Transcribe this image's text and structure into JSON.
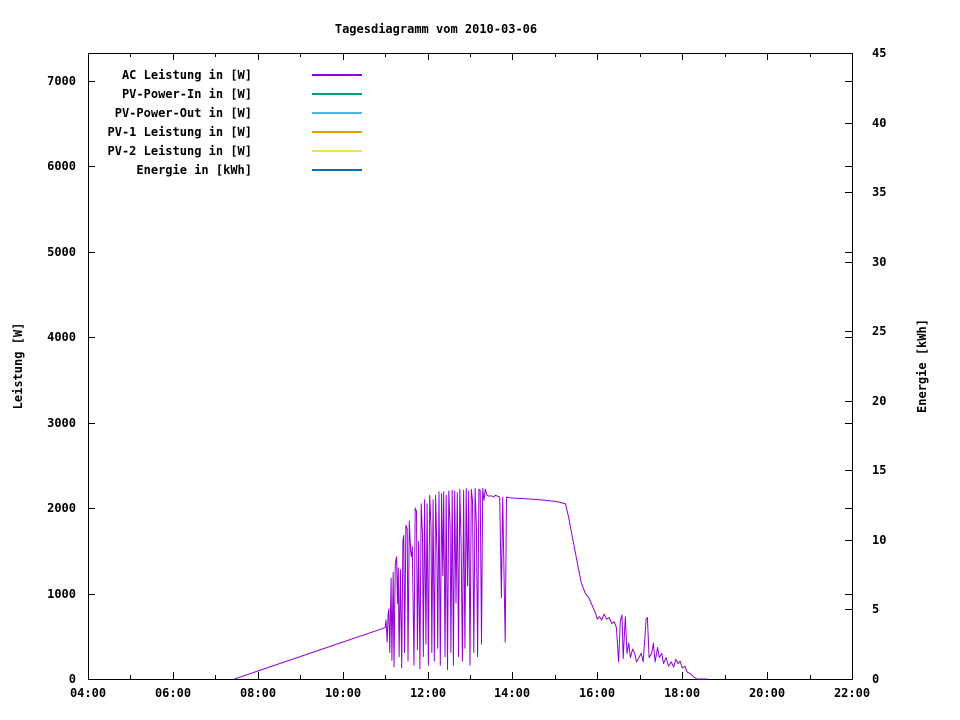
{
  "title": "Tagesdiagramm vom 2010-03-06",
  "axes": {
    "x": {
      "start": 4,
      "end": 22,
      "minor_every": 1,
      "ticks": [
        {
          "t": 4,
          "label": "04:00"
        },
        {
          "t": 6,
          "label": "06:00"
        },
        {
          "t": 8,
          "label": "08:00"
        },
        {
          "t": 10,
          "label": "10:00"
        },
        {
          "t": 12,
          "label": "12:00"
        },
        {
          "t": 14,
          "label": "14:00"
        },
        {
          "t": 16,
          "label": "16:00"
        },
        {
          "t": 18,
          "label": "18:00"
        },
        {
          "t": 20,
          "label": "20:00"
        },
        {
          "t": 22,
          "label": "22:00"
        }
      ]
    },
    "y_left": {
      "label": "Leistung [W]",
      "axis_max": 7327,
      "ticks": [
        {
          "v": 0,
          "label": "0"
        },
        {
          "v": 1000,
          "label": "1000"
        },
        {
          "v": 2000,
          "label": "2000"
        },
        {
          "v": 3000,
          "label": "3000"
        },
        {
          "v": 4000,
          "label": "4000"
        },
        {
          "v": 5000,
          "label": "5000"
        },
        {
          "v": 6000,
          "label": "6000"
        },
        {
          "v": 7000,
          "label": "7000"
        }
      ]
    },
    "y_right": {
      "label": "Energie [kWh]",
      "axis_max": 45,
      "ticks": [
        {
          "v": 0,
          "label": "0"
        },
        {
          "v": 5,
          "label": "5"
        },
        {
          "v": 10,
          "label": "10"
        },
        {
          "v": 15,
          "label": "15"
        },
        {
          "v": 20,
          "label": "20"
        },
        {
          "v": 25,
          "label": "25"
        },
        {
          "v": 30,
          "label": "30"
        },
        {
          "v": 35,
          "label": "35"
        },
        {
          "v": 40,
          "label": "40"
        },
        {
          "v": 45,
          "label": "45"
        }
      ]
    }
  },
  "chart_data": {
    "type": "line",
    "title": "Tagesdiagramm vom 2010-03-06",
    "xlabel": "",
    "ylabel_left": "Leistung [W]",
    "ylabel_right": "Energie [kWh]",
    "x_unit": "hour_of_day",
    "x_range": [
      4,
      22
    ],
    "y_left_range": [
      0,
      7327
    ],
    "y_right_range": [
      0,
      45
    ],
    "grid": false,
    "legend_position": "top-left-inside",
    "series": [
      {
        "id": "ac-leistung",
        "name": "AC Leistung in [W]",
        "color": "#9400d3",
        "axis": "left",
        "points": [
          [
            7.45,
            0
          ],
          [
            11.0,
            600
          ],
          [
            11.02,
            690
          ],
          [
            11.05,
            430
          ],
          [
            11.07,
            760
          ],
          [
            11.09,
            820
          ],
          [
            11.11,
            310
          ],
          [
            11.14,
            1180
          ],
          [
            11.16,
            220
          ],
          [
            11.19,
            1250
          ],
          [
            11.21,
            140
          ],
          [
            11.24,
            1350
          ],
          [
            11.27,
            1430
          ],
          [
            11.29,
            880
          ],
          [
            11.31,
            1300
          ],
          [
            11.33,
            260
          ],
          [
            11.36,
            1280
          ],
          [
            11.39,
            130
          ],
          [
            11.42,
            1620
          ],
          [
            11.44,
            1680
          ],
          [
            11.46,
            310
          ],
          [
            11.49,
            1800
          ],
          [
            11.52,
            1760
          ],
          [
            11.54,
            210
          ],
          [
            11.57,
            1850
          ],
          [
            11.6,
            1500
          ],
          [
            11.62,
            1430
          ],
          [
            11.64,
            1550
          ],
          [
            11.68,
            160
          ],
          [
            11.71,
            2000
          ],
          [
            11.74,
            1960
          ],
          [
            11.76,
            340
          ],
          [
            11.79,
            1610
          ],
          [
            11.82,
            120
          ],
          [
            11.85,
            2050
          ],
          [
            11.88,
            1690
          ],
          [
            11.9,
            260
          ],
          [
            11.93,
            2100
          ],
          [
            11.96,
            410
          ],
          [
            11.99,
            2050
          ],
          [
            12.02,
            160
          ],
          [
            12.05,
            2150
          ],
          [
            12.08,
            1790
          ],
          [
            12.1,
            310
          ],
          [
            12.13,
            2100
          ],
          [
            12.16,
            210
          ],
          [
            12.19,
            2150
          ],
          [
            12.22,
            1490
          ],
          [
            12.24,
            360
          ],
          [
            12.27,
            2190
          ],
          [
            12.3,
            160
          ],
          [
            12.33,
            2170
          ],
          [
            12.36,
            1210
          ],
          [
            12.38,
            2190
          ],
          [
            12.41,
            260
          ],
          [
            12.44,
            2150
          ],
          [
            12.47,
            110
          ],
          [
            12.5,
            2200
          ],
          [
            12.53,
            1790
          ],
          [
            12.55,
            310
          ],
          [
            12.58,
            2210
          ],
          [
            12.61,
            160
          ],
          [
            12.64,
            2200
          ],
          [
            12.67,
            890
          ],
          [
            12.7,
            2180
          ],
          [
            12.73,
            260
          ],
          [
            12.76,
            2220
          ],
          [
            12.79,
            1590
          ],
          [
            12.82,
            210
          ],
          [
            12.85,
            2210
          ],
          [
            12.88,
            360
          ],
          [
            12.91,
            2230
          ],
          [
            12.94,
            1090
          ],
          [
            12.97,
            2200
          ],
          [
            13.0,
            160
          ],
          [
            13.03,
            2220
          ],
          [
            13.06,
            2090
          ],
          [
            13.09,
            310
          ],
          [
            13.12,
            2230
          ],
          [
            13.15,
            1790
          ],
          [
            13.18,
            260
          ],
          [
            13.21,
            2220
          ],
          [
            13.24,
            2210
          ],
          [
            13.27,
            410
          ],
          [
            13.3,
            2230
          ],
          [
            13.33,
            2090
          ],
          [
            13.36,
            2220
          ],
          [
            13.4,
            2150
          ],
          [
            13.45,
            2140
          ],
          [
            13.5,
            2145
          ],
          [
            13.55,
            2130
          ],
          [
            13.6,
            2150
          ],
          [
            13.65,
            2140
          ],
          [
            13.7,
            2130
          ],
          [
            13.74,
            950
          ],
          [
            13.77,
            2125
          ],
          [
            13.83,
            430
          ],
          [
            13.86,
            2130
          ],
          [
            13.95,
            2120
          ],
          [
            14.1,
            2115
          ],
          [
            14.3,
            2110
          ],
          [
            14.5,
            2105
          ],
          [
            14.7,
            2095
          ],
          [
            14.9,
            2085
          ],
          [
            15.05,
            2075
          ],
          [
            15.15,
            2065
          ],
          [
            15.25,
            2050
          ],
          [
            15.32,
            1900
          ],
          [
            15.42,
            1640
          ],
          [
            15.52,
            1380
          ],
          [
            15.62,
            1130
          ],
          [
            15.72,
            1000
          ],
          [
            15.8,
            950
          ],
          [
            15.88,
            860
          ],
          [
            15.95,
            780
          ],
          [
            16.0,
            700
          ],
          [
            16.05,
            730
          ],
          [
            16.1,
            690
          ],
          [
            16.16,
            760
          ],
          [
            16.22,
            700
          ],
          [
            16.28,
            720
          ],
          [
            16.34,
            650
          ],
          [
            16.4,
            670
          ],
          [
            16.45,
            600
          ],
          [
            16.5,
            200
          ],
          [
            16.54,
            680
          ],
          [
            16.58,
            750
          ],
          [
            16.61,
            240
          ],
          [
            16.66,
            730
          ],
          [
            16.7,
            300
          ],
          [
            16.74,
            420
          ],
          [
            16.78,
            250
          ],
          [
            16.83,
            350
          ],
          [
            16.88,
            300
          ],
          [
            16.92,
            200
          ],
          [
            16.98,
            250
          ],
          [
            17.03,
            300
          ],
          [
            17.08,
            200
          ],
          [
            17.15,
            700
          ],
          [
            17.18,
            720
          ],
          [
            17.22,
            250
          ],
          [
            17.28,
            300
          ],
          [
            17.32,
            420
          ],
          [
            17.36,
            200
          ],
          [
            17.42,
            370
          ],
          [
            17.46,
            250
          ],
          [
            17.52,
            300
          ],
          [
            17.56,
            180
          ],
          [
            17.62,
            250
          ],
          [
            17.68,
            150
          ],
          [
            17.74,
            200
          ],
          [
            17.8,
            140
          ],
          [
            17.85,
            230
          ],
          [
            17.9,
            180
          ],
          [
            17.95,
            210
          ],
          [
            18.0,
            130
          ],
          [
            18.06,
            150
          ],
          [
            18.12,
            80
          ],
          [
            18.2,
            60
          ],
          [
            18.28,
            20
          ],
          [
            18.35,
            0
          ],
          [
            18.6,
            0
          ]
        ]
      },
      {
        "id": "pv-power-in",
        "name": "PV-Power-In in [W]",
        "color": "#009e73",
        "axis": "left",
        "points": []
      },
      {
        "id": "pv-power-out",
        "name": "PV-Power-Out in [W]",
        "color": "#56b4e9",
        "axis": "left",
        "points": []
      },
      {
        "id": "pv-1-leistung",
        "name": "PV-1 Leistung in [W]",
        "color": "#e69f00",
        "axis": "left",
        "points": []
      },
      {
        "id": "pv-2-leistung",
        "name": "PV-2 Leistung in [W]",
        "color": "#f0e442",
        "axis": "left",
        "points": []
      },
      {
        "id": "energie",
        "name": "Energie in [kWh]",
        "color": "#0072b2",
        "axis": "right",
        "points": []
      }
    ]
  },
  "colors": {
    "background": "#ffffff",
    "axis": "#000000",
    "ac_line": "#9400d3"
  }
}
